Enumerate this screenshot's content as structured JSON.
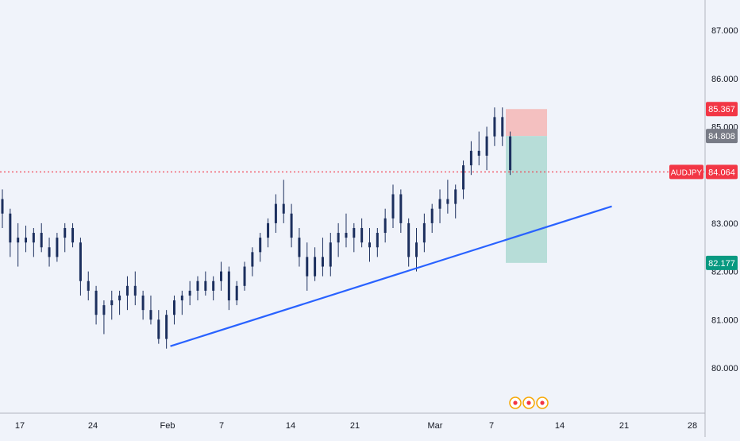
{
  "colors": {
    "background": "#f0f3fa",
    "candle": "#1c2f5e",
    "trendline": "#2962ff",
    "price_line": "#f23645",
    "stop_zone": "#f4c0c0",
    "target_zone": "#b7ddd8",
    "axis_text": "#131722",
    "badge_stop": "#f23645",
    "badge_entry": "#787b86",
    "badge_target": "#089981"
  },
  "chart_data": {
    "type": "candlestick",
    "symbol": "AUDJPY",
    "title": "",
    "xlabel": "",
    "ylabel": "",
    "ylim": [
      79.2,
      87.5
    ],
    "grid": false,
    "y_ticks": [
      "80.000",
      "81.000",
      "82.000",
      "83.000",
      "85.000",
      "86.000",
      "87.000"
    ],
    "x_ticks": [
      "17",
      "24",
      "Feb",
      "7",
      "14",
      "21",
      "Mar",
      "7",
      "14",
      "21",
      "28"
    ],
    "series": [
      {
        "points": [
          [
            83.5,
            83.7,
            82.9,
            83.2
          ],
          [
            83.2,
            83.3,
            82.3,
            82.6
          ],
          [
            82.6,
            83.0,
            82.1,
            82.7
          ],
          [
            82.7,
            82.95,
            82.4,
            82.6
          ],
          [
            82.6,
            82.9,
            82.3,
            82.8
          ],
          [
            82.8,
            83.0,
            82.4,
            82.5
          ],
          [
            82.5,
            82.7,
            82.1,
            82.3
          ],
          [
            82.3,
            82.8,
            82.2,
            82.7
          ],
          [
            82.7,
            83.0,
            82.4,
            82.9
          ],
          [
            82.9,
            83.0,
            82.5,
            82.6
          ],
          [
            82.6,
            82.7,
            81.5,
            81.8
          ],
          [
            81.8,
            82.0,
            81.4,
            81.6
          ],
          [
            81.6,
            81.7,
            80.9,
            81.1
          ],
          [
            81.1,
            81.4,
            80.7,
            81.3
          ],
          [
            81.3,
            81.6,
            81.0,
            81.4
          ],
          [
            81.4,
            81.6,
            81.1,
            81.5
          ],
          [
            81.5,
            81.9,
            81.2,
            81.7
          ],
          [
            81.7,
            82.0,
            81.3,
            81.5
          ],
          [
            81.5,
            81.6,
            81.0,
            81.2
          ],
          [
            81.2,
            81.5,
            80.9,
            81.0
          ],
          [
            81.0,
            81.2,
            80.5,
            80.6
          ],
          [
            80.6,
            81.2,
            80.4,
            81.1
          ],
          [
            81.1,
            81.5,
            80.9,
            81.4
          ],
          [
            81.4,
            81.6,
            81.1,
            81.5
          ],
          [
            81.5,
            81.8,
            81.3,
            81.6
          ],
          [
            81.6,
            81.9,
            81.4,
            81.8
          ],
          [
            81.8,
            82.0,
            81.5,
            81.6
          ],
          [
            81.6,
            81.9,
            81.4,
            81.8
          ],
          [
            81.8,
            82.2,
            81.6,
            82.0
          ],
          [
            82.0,
            82.1,
            81.2,
            81.4
          ],
          [
            81.4,
            81.8,
            81.3,
            81.7
          ],
          [
            81.7,
            82.2,
            81.6,
            82.1
          ],
          [
            82.1,
            82.5,
            81.9,
            82.4
          ],
          [
            82.4,
            82.8,
            82.2,
            82.7
          ],
          [
            82.7,
            83.1,
            82.5,
            83.0
          ],
          [
            83.0,
            83.6,
            82.8,
            83.4
          ],
          [
            83.4,
            83.9,
            83.0,
            83.2
          ],
          [
            83.2,
            83.4,
            82.5,
            82.7
          ],
          [
            82.7,
            82.9,
            82.1,
            82.3
          ],
          [
            82.3,
            82.6,
            81.6,
            81.9
          ],
          [
            81.9,
            82.5,
            81.8,
            82.3
          ],
          [
            82.3,
            82.7,
            81.9,
            82.1
          ],
          [
            82.1,
            82.8,
            81.9,
            82.6
          ],
          [
            82.6,
            83.0,
            82.3,
            82.8
          ],
          [
            82.8,
            83.2,
            82.5,
            82.7
          ],
          [
            82.7,
            83.0,
            82.4,
            82.9
          ],
          [
            82.9,
            83.1,
            82.5,
            82.6
          ],
          [
            82.6,
            82.9,
            82.2,
            82.5
          ],
          [
            82.5,
            82.9,
            82.3,
            82.8
          ],
          [
            82.8,
            83.3,
            82.6,
            83.1
          ],
          [
            83.1,
            83.8,
            82.9,
            83.6
          ],
          [
            83.6,
            83.7,
            82.8,
            83.0
          ],
          [
            83.0,
            83.1,
            82.1,
            82.3
          ],
          [
            82.3,
            82.9,
            82.0,
            82.6
          ],
          [
            82.6,
            83.2,
            82.4,
            83.0
          ],
          [
            83.0,
            83.4,
            82.8,
            83.3
          ],
          [
            83.3,
            83.7,
            83.0,
            83.5
          ],
          [
            83.5,
            83.9,
            83.2,
            83.4
          ],
          [
            83.4,
            83.8,
            83.1,
            83.7
          ],
          [
            83.7,
            84.3,
            83.5,
            84.2
          ],
          [
            84.2,
            84.7,
            84.0,
            84.5
          ],
          [
            84.5,
            84.9,
            84.2,
            84.4
          ],
          [
            84.4,
            85.0,
            84.1,
            84.8
          ],
          [
            84.8,
            85.4,
            84.6,
            85.2
          ],
          [
            85.2,
            85.4,
            84.6,
            84.8
          ],
          [
            84.8,
            84.9,
            84.0,
            84.1
          ]
        ]
      }
    ],
    "trendline": [
      [
        21.5,
        80.45
      ],
      [
        78.0,
        83.35
      ]
    ],
    "horizontal_line": 84.064,
    "position": {
      "type": "short",
      "entry": 84.808,
      "stop": 85.367,
      "target": 82.177
    },
    "price_badges": [
      {
        "label": "85.367",
        "role": "stop"
      },
      {
        "label": "84.808",
        "role": "entry"
      },
      {
        "label": "AUDJPY",
        "role": "symbol"
      },
      {
        "label": "84.064",
        "role": "price"
      },
      {
        "label": "82.177",
        "role": "target"
      }
    ],
    "event_markers": 3
  }
}
